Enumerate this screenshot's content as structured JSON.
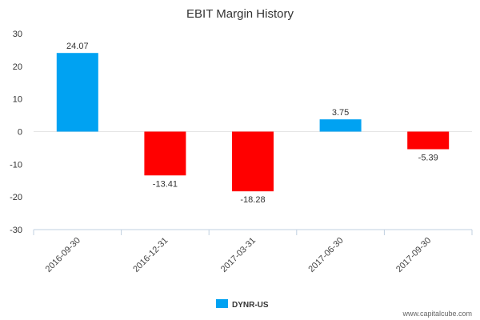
{
  "chart_data": {
    "type": "bar",
    "title": "EBIT Margin History",
    "categories": [
      "2016-09-30",
      "2016-12-31",
      "2017-03-31",
      "2017-06-30",
      "2017-09-30"
    ],
    "series": [
      {
        "name": "DYNR-US",
        "values": [
          24.07,
          -13.41,
          -18.28,
          3.75,
          -5.39
        ]
      }
    ],
    "data_labels": [
      "24.07",
      "-13.41",
      "-18.28",
      "3.75",
      "-5.39"
    ],
    "ylim": [
      -30,
      30
    ],
    "yticks": [
      30,
      20,
      10,
      0,
      -10,
      -20,
      -30
    ],
    "xlabel": "",
    "ylabel": "",
    "legend_position": "bottom",
    "colors": {
      "positive": "#00a2f2",
      "negative": "#ff0000",
      "axis": "#c0d0e0",
      "zero_line": "#cccccc"
    }
  },
  "watermark": "www.capitalcube.com"
}
